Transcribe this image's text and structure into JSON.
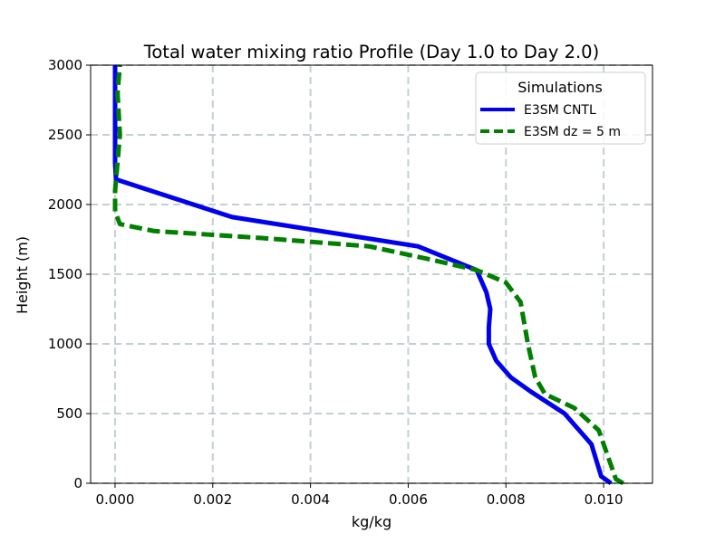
{
  "chart_data": {
    "type": "line",
    "title": "Total water mixing ratio Profile (Day 1.0 to Day 2.0)",
    "xlabel": "kg/kg",
    "ylabel": "Height (m)",
    "xlim": [
      -0.0005,
      0.011
    ],
    "ylim": [
      0,
      3000
    ],
    "grid": true,
    "xticks": [
      0.0,
      0.002,
      0.004,
      0.006,
      0.008,
      0.01
    ],
    "xtick_labels": [
      "0.000",
      "0.002",
      "0.004",
      "0.006",
      "0.008",
      "0.010"
    ],
    "yticks": [
      0,
      500,
      1000,
      1500,
      2000,
      2500,
      3000
    ],
    "ytick_labels": [
      "0",
      "500",
      "1000",
      "1500",
      "2000",
      "2500",
      "3000"
    ],
    "legend": {
      "title": "Simulations",
      "placement": "upper-right"
    },
    "series": [
      {
        "name": "E3SM CNTL",
        "color": "#0000ee",
        "style": "solid",
        "points": [
          [
            0.01015,
            0
          ],
          [
            0.00995,
            50
          ],
          [
            0.00975,
            280
          ],
          [
            0.0092,
            500
          ],
          [
            0.0085,
            660
          ],
          [
            0.0081,
            760
          ],
          [
            0.0078,
            880
          ],
          [
            0.00765,
            1000
          ],
          [
            0.00765,
            1120
          ],
          [
            0.00768,
            1250
          ],
          [
            0.0076,
            1370
          ],
          [
            0.0074,
            1530
          ],
          [
            0.0062,
            1700
          ],
          [
            0.0024,
            1910
          ],
          [
            2e-05,
            2180
          ],
          [
            0.0,
            2300
          ],
          [
            0.0,
            2600
          ],
          [
            0.0,
            3000
          ]
        ]
      },
      {
        "name": "E3SM dz = 5 m",
        "color": "#007f00",
        "style": "dashed",
        "points": [
          [
            0.0104,
            0
          ],
          [
            0.01025,
            30
          ],
          [
            0.0101,
            180
          ],
          [
            0.0099,
            380
          ],
          [
            0.0094,
            540
          ],
          [
            0.0088,
            640
          ],
          [
            0.0086,
            760
          ],
          [
            0.00845,
            1000
          ],
          [
            0.0083,
            1300
          ],
          [
            0.008,
            1440
          ],
          [
            0.0074,
            1530
          ],
          [
            0.0064,
            1610
          ],
          [
            0.0052,
            1700
          ],
          [
            0.003,
            1760
          ],
          [
            0.0008,
            1810
          ],
          [
            0.0001,
            1860
          ],
          [
            0.0,
            1950
          ],
          [
            0.0,
            2100
          ],
          [
            0.0001,
            2500
          ],
          [
            5e-05,
            2800
          ],
          [
            0.0001,
            3000
          ]
        ]
      }
    ]
  }
}
